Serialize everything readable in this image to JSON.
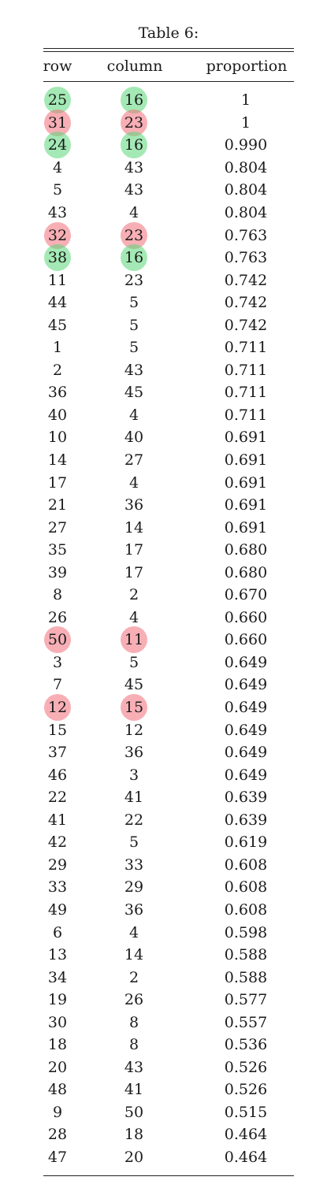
{
  "caption": "Table 6:",
  "columns": [
    "row",
    "column",
    "proportion"
  ],
  "colors": {
    "green_highlight": "#5ad778",
    "red_highlight": "#f06e78"
  },
  "rows": [
    {
      "row": "25",
      "column": "16",
      "proportion": "1",
      "highlight": "green"
    },
    {
      "row": "31",
      "column": "23",
      "proportion": "1",
      "highlight": "red"
    },
    {
      "row": "24",
      "column": "16",
      "proportion": "0.990",
      "highlight": "green"
    },
    {
      "row": "4",
      "column": "43",
      "proportion": "0.804",
      "highlight": ""
    },
    {
      "row": "5",
      "column": "43",
      "proportion": "0.804",
      "highlight": ""
    },
    {
      "row": "43",
      "column": "4",
      "proportion": "0.804",
      "highlight": ""
    },
    {
      "row": "32",
      "column": "23",
      "proportion": "0.763",
      "highlight": "red"
    },
    {
      "row": "38",
      "column": "16",
      "proportion": "0.763",
      "highlight": "green"
    },
    {
      "row": "11",
      "column": "23",
      "proportion": "0.742",
      "highlight": ""
    },
    {
      "row": "44",
      "column": "5",
      "proportion": "0.742",
      "highlight": ""
    },
    {
      "row": "45",
      "column": "5",
      "proportion": "0.742",
      "highlight": ""
    },
    {
      "row": "1",
      "column": "5",
      "proportion": "0.711",
      "highlight": ""
    },
    {
      "row": "2",
      "column": "43",
      "proportion": "0.711",
      "highlight": ""
    },
    {
      "row": "36",
      "column": "45",
      "proportion": "0.711",
      "highlight": ""
    },
    {
      "row": "40",
      "column": "4",
      "proportion": "0.711",
      "highlight": ""
    },
    {
      "row": "10",
      "column": "40",
      "proportion": "0.691",
      "highlight": ""
    },
    {
      "row": "14",
      "column": "27",
      "proportion": "0.691",
      "highlight": ""
    },
    {
      "row": "17",
      "column": "4",
      "proportion": "0.691",
      "highlight": ""
    },
    {
      "row": "21",
      "column": "36",
      "proportion": "0.691",
      "highlight": ""
    },
    {
      "row": "27",
      "column": "14",
      "proportion": "0.691",
      "highlight": ""
    },
    {
      "row": "35",
      "column": "17",
      "proportion": "0.680",
      "highlight": ""
    },
    {
      "row": "39",
      "column": "17",
      "proportion": "0.680",
      "highlight": ""
    },
    {
      "row": "8",
      "column": "2",
      "proportion": "0.670",
      "highlight": ""
    },
    {
      "row": "26",
      "column": "4",
      "proportion": "0.660",
      "highlight": ""
    },
    {
      "row": "50",
      "column": "11",
      "proportion": "0.660",
      "highlight": "red"
    },
    {
      "row": "3",
      "column": "5",
      "proportion": "0.649",
      "highlight": ""
    },
    {
      "row": "7",
      "column": "45",
      "proportion": "0.649",
      "highlight": ""
    },
    {
      "row": "12",
      "column": "15",
      "proportion": "0.649",
      "highlight": "red"
    },
    {
      "row": "15",
      "column": "12",
      "proportion": "0.649",
      "highlight": ""
    },
    {
      "row": "37",
      "column": "36",
      "proportion": "0.649",
      "highlight": ""
    },
    {
      "row": "46",
      "column": "3",
      "proportion": "0.649",
      "highlight": ""
    },
    {
      "row": "22",
      "column": "41",
      "proportion": "0.639",
      "highlight": ""
    },
    {
      "row": "41",
      "column": "22",
      "proportion": "0.639",
      "highlight": ""
    },
    {
      "row": "42",
      "column": "5",
      "proportion": "0.619",
      "highlight": ""
    },
    {
      "row": "29",
      "column": "33",
      "proportion": "0.608",
      "highlight": ""
    },
    {
      "row": "33",
      "column": "29",
      "proportion": "0.608",
      "highlight": ""
    },
    {
      "row": "49",
      "column": "36",
      "proportion": "0.608",
      "highlight": ""
    },
    {
      "row": "6",
      "column": "4",
      "proportion": "0.598",
      "highlight": ""
    },
    {
      "row": "13",
      "column": "14",
      "proportion": "0.588",
      "highlight": ""
    },
    {
      "row": "34",
      "column": "2",
      "proportion": "0.588",
      "highlight": ""
    },
    {
      "row": "19",
      "column": "26",
      "proportion": "0.577",
      "highlight": ""
    },
    {
      "row": "30",
      "column": "8",
      "proportion": "0.557",
      "highlight": ""
    },
    {
      "row": "18",
      "column": "8",
      "proportion": "0.536",
      "highlight": ""
    },
    {
      "row": "20",
      "column": "43",
      "proportion": "0.526",
      "highlight": ""
    },
    {
      "row": "48",
      "column": "41",
      "proportion": "0.526",
      "highlight": ""
    },
    {
      "row": "9",
      "column": "50",
      "proportion": "0.515",
      "highlight": ""
    },
    {
      "row": "28",
      "column": "18",
      "proportion": "0.464",
      "highlight": ""
    },
    {
      "row": "47",
      "column": "20",
      "proportion": "0.464",
      "highlight": ""
    }
  ]
}
